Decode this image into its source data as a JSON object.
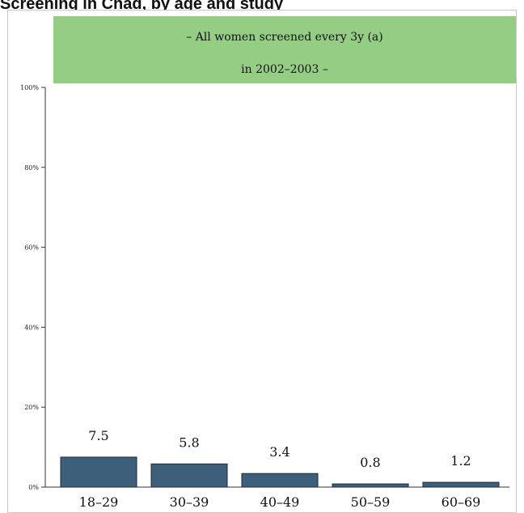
{
  "page_title": "Screening in Chad, by age and study",
  "chart_data": {
    "type": "bar",
    "categories": [
      "18–29",
      "30–39",
      "40–49",
      "50–59",
      "60–69"
    ],
    "values": [
      7.5,
      5.8,
      3.4,
      0.8,
      1.2
    ],
    "value_labels": [
      "7.5",
      "5.8",
      "3.4",
      "0.8",
      "1.2"
    ],
    "title": "",
    "xlabel": "",
    "ylabel": "",
    "ylim": [
      0,
      100
    ],
    "yticks": [
      0,
      20,
      40,
      60,
      80,
      100
    ],
    "ytick_labels": [
      "0%",
      "20%",
      "40%",
      "60%",
      "80%",
      "100%"
    ],
    "annotation_lines": [
      "– All women screened every 3y (a)",
      "in 2002–2003 –"
    ],
    "colors": {
      "bar": "#3d5f7a",
      "bar_edge": "#1c2a36",
      "banner": "#96cd85",
      "axis": "#333333"
    },
    "grid": false
  }
}
